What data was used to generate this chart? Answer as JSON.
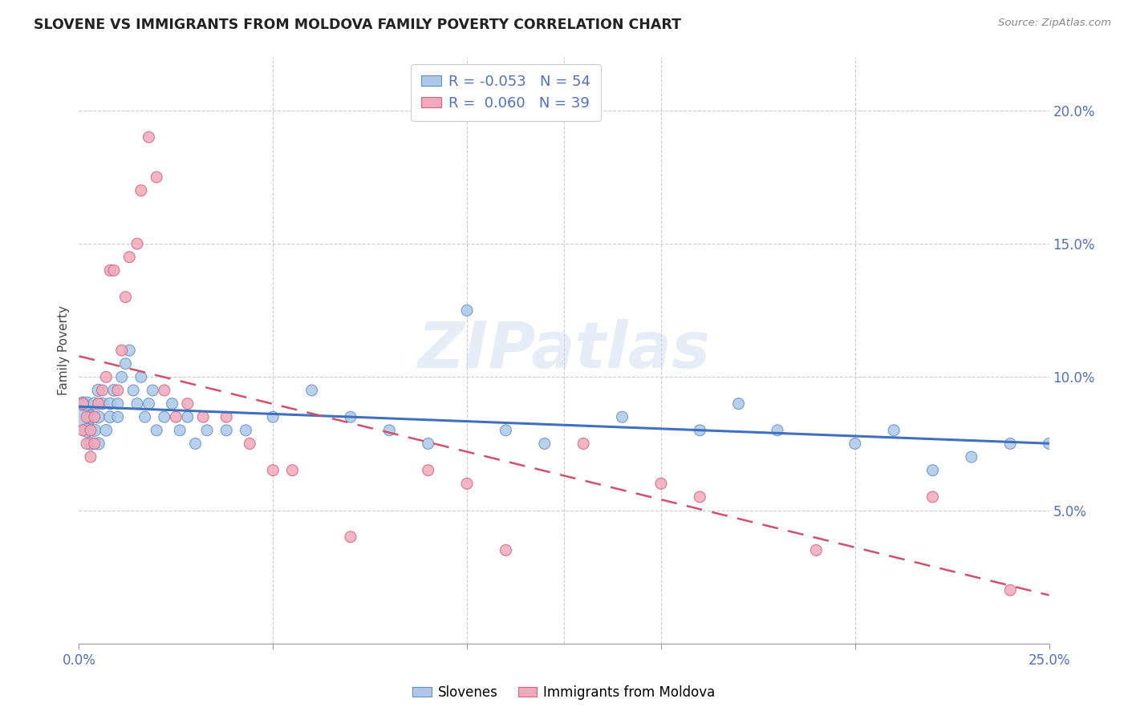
{
  "title": "SLOVENE VS IMMIGRANTS FROM MOLDOVA FAMILY POVERTY CORRELATION CHART",
  "source": "Source: ZipAtlas.com",
  "ylabel_label": "Family Poverty",
  "x_min": 0.0,
  "x_max": 0.25,
  "y_min": 0.0,
  "y_max": 0.22,
  "x_tick_labels": [
    "0.0%",
    "",
    "",
    "",
    "",
    "25.0%"
  ],
  "x_tick_positions": [
    0.0,
    0.05,
    0.1,
    0.15,
    0.2,
    0.25
  ],
  "y_tick_positions": [
    0.05,
    0.1,
    0.15,
    0.2
  ],
  "y_tick_labels": [
    "5.0%",
    "10.0%",
    "15.0%",
    "20.0%"
  ],
  "slovene_color": "#adc8e8",
  "moldova_color": "#f0aabb",
  "slovene_edge_color": "#6090c8",
  "moldova_edge_color": "#d86080",
  "slovene_line_color": "#4070c0",
  "moldova_line_color": "#d05070",
  "watermark": "ZIPatlas",
  "legend_line1": "R = -0.053   N = 54",
  "legend_line2": "R =  0.060   N = 39",
  "legend_label1": "Slovenes",
  "legend_label2": "Immigrants from Moldova",
  "slovene_x": [
    0.001,
    0.001,
    0.002,
    0.002,
    0.003,
    0.003,
    0.004,
    0.004,
    0.005,
    0.005,
    0.005,
    0.006,
    0.007,
    0.008,
    0.008,
    0.009,
    0.01,
    0.01,
    0.011,
    0.012,
    0.013,
    0.014,
    0.015,
    0.016,
    0.017,
    0.018,
    0.019,
    0.02,
    0.022,
    0.024,
    0.026,
    0.028,
    0.03,
    0.033,
    0.038,
    0.043,
    0.05,
    0.06,
    0.07,
    0.08,
    0.09,
    0.1,
    0.11,
    0.12,
    0.14,
    0.16,
    0.17,
    0.18,
    0.2,
    0.21,
    0.22,
    0.23,
    0.24,
    0.25
  ],
  "slovene_y": [
    0.085,
    0.09,
    0.08,
    0.09,
    0.085,
    0.075,
    0.09,
    0.08,
    0.075,
    0.085,
    0.095,
    0.09,
    0.08,
    0.085,
    0.09,
    0.095,
    0.085,
    0.09,
    0.1,
    0.105,
    0.11,
    0.095,
    0.09,
    0.1,
    0.085,
    0.09,
    0.095,
    0.08,
    0.085,
    0.09,
    0.08,
    0.085,
    0.075,
    0.08,
    0.08,
    0.08,
    0.085,
    0.095,
    0.085,
    0.08,
    0.075,
    0.125,
    0.08,
    0.075,
    0.085,
    0.08,
    0.09,
    0.08,
    0.075,
    0.08,
    0.065,
    0.07,
    0.075,
    0.075
  ],
  "slovene_sizes": [
    500,
    150,
    150,
    150,
    130,
    130,
    120,
    120,
    120,
    120,
    120,
    110,
    110,
    110,
    110,
    110,
    100,
    100,
    100,
    100,
    100,
    100,
    100,
    100,
    100,
    100,
    100,
    100,
    100,
    100,
    100,
    100,
    100,
    100,
    100,
    100,
    100,
    100,
    100,
    100,
    100,
    100,
    100,
    100,
    100,
    100,
    100,
    100,
    100,
    100,
    100,
    100,
    100,
    100
  ],
  "moldova_x": [
    0.001,
    0.001,
    0.002,
    0.002,
    0.003,
    0.003,
    0.004,
    0.004,
    0.005,
    0.006,
    0.007,
    0.008,
    0.009,
    0.01,
    0.011,
    0.012,
    0.013,
    0.015,
    0.016,
    0.018,
    0.02,
    0.022,
    0.025,
    0.028,
    0.032,
    0.038,
    0.044,
    0.05,
    0.055,
    0.07,
    0.09,
    0.1,
    0.11,
    0.13,
    0.15,
    0.16,
    0.19,
    0.22,
    0.24
  ],
  "moldova_y": [
    0.09,
    0.08,
    0.085,
    0.075,
    0.08,
    0.07,
    0.085,
    0.075,
    0.09,
    0.095,
    0.1,
    0.14,
    0.14,
    0.095,
    0.11,
    0.13,
    0.145,
    0.15,
    0.17,
    0.19,
    0.175,
    0.095,
    0.085,
    0.09,
    0.085,
    0.085,
    0.075,
    0.065,
    0.065,
    0.04,
    0.065,
    0.06,
    0.035,
    0.075,
    0.06,
    0.055,
    0.035,
    0.055,
    0.02
  ],
  "moldova_sizes": [
    100,
    100,
    100,
    100,
    100,
    100,
    100,
    100,
    100,
    100,
    100,
    100,
    100,
    100,
    100,
    100,
    100,
    100,
    100,
    100,
    100,
    100,
    100,
    100,
    100,
    100,
    100,
    100,
    100,
    100,
    100,
    100,
    100,
    100,
    100,
    100,
    100,
    100,
    100
  ]
}
